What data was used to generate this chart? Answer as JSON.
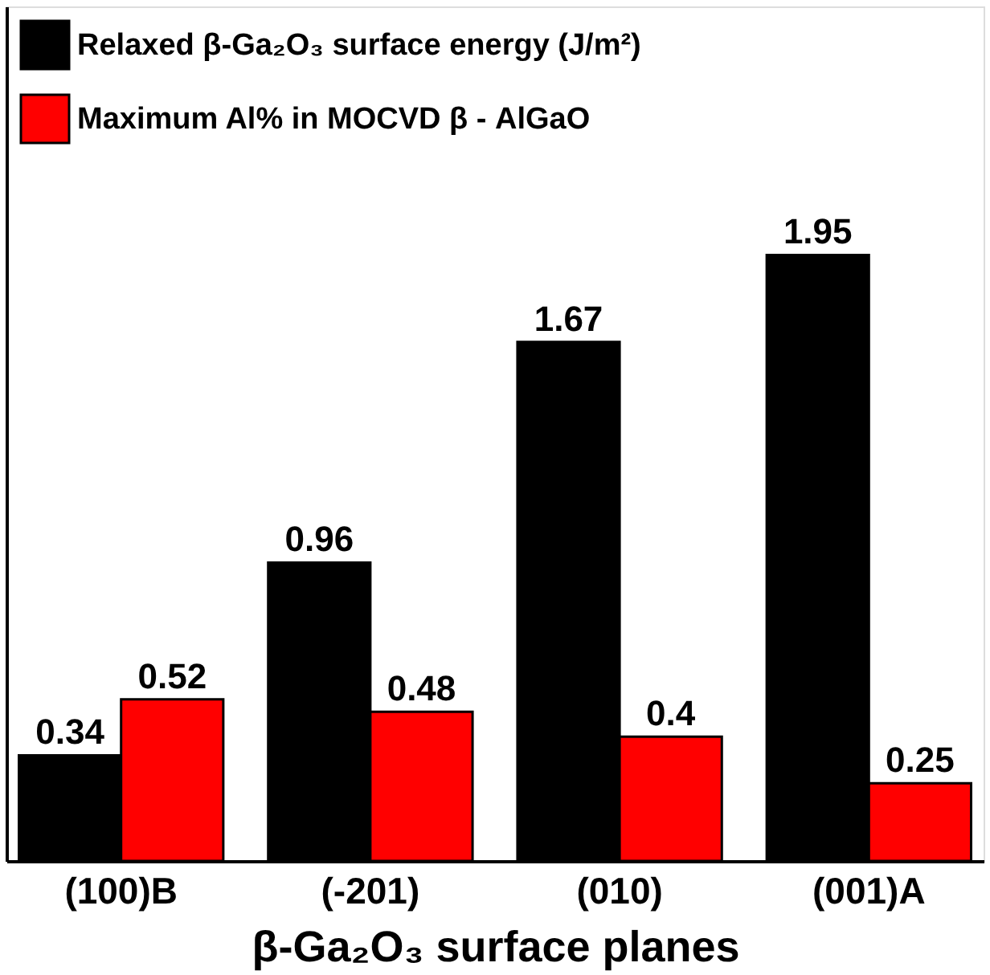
{
  "chart_data": {
    "type": "bar",
    "categories": [
      "(100)B",
      "(-201)",
      "(010)",
      "(001)A"
    ],
    "series": [
      {
        "name": "Relaxed β-Ga₂O₃ surface energy (J/m²)",
        "color": "#000000",
        "values": [
          0.34,
          0.96,
          1.67,
          1.95
        ]
      },
      {
        "name": "Maximum Al% in MOCVD β - AlGaO",
        "color": "#ff0000",
        "values": [
          0.52,
          0.48,
          0.4,
          0.25
        ]
      }
    ],
    "xlabel": "β-Ga₂O₃ surface planes",
    "data_labels": true,
    "legend": "top left",
    "grid": false,
    "tick_labels": "x"
  }
}
